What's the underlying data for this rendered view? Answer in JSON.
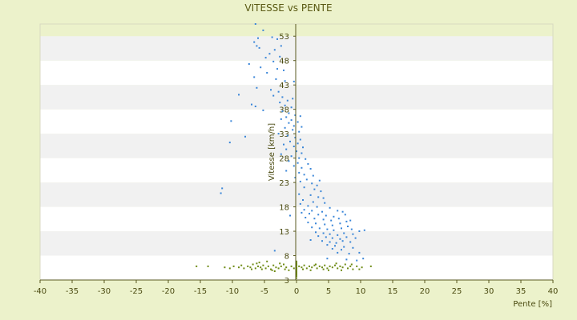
{
  "chart_data": {
    "type": "scatter",
    "title": "VITESSE vs PENTE",
    "xlabel": "Pente [%]",
    "ylabel": "Vitesse [km/h]",
    "xlim": [
      -40,
      40
    ],
    "ylim": [
      3,
      55.5
    ],
    "x_ticks": [
      -40,
      -35,
      -30,
      -25,
      -20,
      -15,
      -10,
      -5,
      0,
      5,
      10,
      15,
      20,
      25,
      30,
      35,
      40
    ],
    "y_ticks": [
      3,
      8,
      13,
      18,
      23,
      28,
      33,
      38,
      43,
      48,
      53
    ],
    "grid": "horizontal bands",
    "colors": {
      "background": "#ecf2cb",
      "band_light": "#ffffff",
      "band_dark": "#f1f1f1",
      "axis": "#5a5a20",
      "series_1": "#3a86d8",
      "series_2": "#6e8a14"
    },
    "series": [
      {
        "color": "#3a86d8",
        "points": [
          [
            -6.4,
            55.5
          ],
          [
            -5.2,
            54.2
          ],
          [
            -6.0,
            52.6
          ],
          [
            -6.6,
            51.8
          ],
          [
            -6.2,
            51.0
          ],
          [
            -5.8,
            50.6
          ],
          [
            -3.8,
            52.8
          ],
          [
            -3.0,
            52.4
          ],
          [
            -2.4,
            51.0
          ],
          [
            -3.4,
            50.2
          ],
          [
            -4.2,
            49.4
          ],
          [
            -2.6,
            48.8
          ],
          [
            -4.8,
            48.6
          ],
          [
            -3.6,
            47.8
          ],
          [
            -7.4,
            47.3
          ],
          [
            -5.6,
            46.6
          ],
          [
            -3.0,
            46.3
          ],
          [
            -2.0,
            46.0
          ],
          [
            -4.6,
            45.5
          ],
          [
            -6.6,
            44.6
          ],
          [
            -3.2,
            44.2
          ],
          [
            -1.8,
            43.8
          ],
          [
            -0.4,
            43.7
          ],
          [
            -6.2,
            42.4
          ],
          [
            -4.0,
            42.0
          ],
          [
            -2.8,
            41.6
          ],
          [
            -9.0,
            41.0
          ],
          [
            -3.6,
            40.8
          ],
          [
            -2.2,
            40.5
          ],
          [
            -0.6,
            40.2
          ],
          [
            -1.4,
            39.8
          ],
          [
            -2.6,
            39.4
          ],
          [
            -7.0,
            39.0
          ],
          [
            -6.4,
            38.6
          ],
          [
            -1.8,
            38.8
          ],
          [
            -0.8,
            38.4
          ],
          [
            -5.2,
            37.8
          ],
          [
            -2.2,
            37.6
          ],
          [
            -1.2,
            37.2
          ],
          [
            -0.2,
            36.8
          ],
          [
            0.6,
            36.6
          ],
          [
            -1.6,
            36.4
          ],
          [
            -2.4,
            36.0
          ],
          [
            -0.8,
            35.8
          ],
          [
            0.2,
            35.4
          ],
          [
            -10.2,
            35.6
          ],
          [
            -1.2,
            35.2
          ],
          [
            -0.4,
            34.6
          ],
          [
            0.8,
            34.4
          ],
          [
            -1.8,
            34.2
          ],
          [
            -0.6,
            33.8
          ],
          [
            0.4,
            33.4
          ],
          [
            -2.8,
            33.0
          ],
          [
            -1.4,
            32.6
          ],
          [
            -8.0,
            32.4
          ],
          [
            -0.2,
            32.2
          ],
          [
            0.6,
            31.8
          ],
          [
            -1.0,
            31.4
          ],
          [
            -10.4,
            31.2
          ],
          [
            0.2,
            31.0
          ],
          [
            -2.0,
            30.8
          ],
          [
            -0.4,
            30.4
          ],
          [
            1.0,
            30.2
          ],
          [
            -1.6,
            29.8
          ],
          [
            0.0,
            29.4
          ],
          [
            0.8,
            29.0
          ],
          [
            -2.4,
            28.8
          ],
          [
            -0.8,
            28.4
          ],
          [
            0.4,
            28.0
          ],
          [
            1.4,
            27.8
          ],
          [
            -1.2,
            27.4
          ],
          [
            0.2,
            27.0
          ],
          [
            1.8,
            26.8
          ],
          [
            -0.4,
            26.4
          ],
          [
            0.8,
            26.0
          ],
          [
            2.2,
            25.8
          ],
          [
            -1.6,
            25.4
          ],
          [
            0.4,
            25.0
          ],
          [
            1.2,
            24.6
          ],
          [
            2.6,
            24.4
          ],
          [
            -0.2,
            24.0
          ],
          [
            1.6,
            23.6
          ],
          [
            3.6,
            23.4
          ],
          [
            0.6,
            23.2
          ],
          [
            2.4,
            22.8
          ],
          [
            3.2,
            22.4
          ],
          [
            -11.6,
            21.8
          ],
          [
            1.2,
            22.0
          ],
          [
            2.8,
            21.6
          ],
          [
            3.8,
            21.2
          ],
          [
            -11.8,
            20.8
          ],
          [
            0.4,
            20.6
          ],
          [
            2.2,
            20.4
          ],
          [
            3.4,
            20.0
          ],
          [
            4.2,
            19.8
          ],
          [
            1.0,
            19.4
          ],
          [
            2.6,
            19.0
          ],
          [
            4.4,
            18.8
          ],
          [
            0.6,
            18.6
          ],
          [
            1.8,
            18.2
          ],
          [
            3.2,
            18.0
          ],
          [
            5.2,
            17.8
          ],
          [
            1.2,
            17.4
          ],
          [
            2.4,
            17.2
          ],
          [
            4.0,
            17.0
          ],
          [
            6.4,
            17.2
          ],
          [
            7.2,
            17.0
          ],
          [
            0.8,
            16.8
          ],
          [
            2.0,
            16.6
          ],
          [
            3.4,
            16.4
          ],
          [
            4.6,
            16.2
          ],
          [
            5.8,
            16.0
          ],
          [
            7.6,
            16.4
          ],
          [
            -1.0,
            16.2
          ],
          [
            1.4,
            15.8
          ],
          [
            2.8,
            15.6
          ],
          [
            4.2,
            15.4
          ],
          [
            5.4,
            15.2
          ],
          [
            6.6,
            15.6
          ],
          [
            7.8,
            15.0
          ],
          [
            8.4,
            15.2
          ],
          [
            1.8,
            14.8
          ],
          [
            3.0,
            14.6
          ],
          [
            4.4,
            14.4
          ],
          [
            5.6,
            14.2
          ],
          [
            6.8,
            14.6
          ],
          [
            8.0,
            14.0
          ],
          [
            2.4,
            13.8
          ],
          [
            3.6,
            13.6
          ],
          [
            4.8,
            13.4
          ],
          [
            5.8,
            13.2
          ],
          [
            7.0,
            13.6
          ],
          [
            8.6,
            13.4
          ],
          [
            9.8,
            13.0
          ],
          [
            10.6,
            13.2
          ],
          [
            3.0,
            12.8
          ],
          [
            4.2,
            12.6
          ],
          [
            5.2,
            12.4
          ],
          [
            6.4,
            12.2
          ],
          [
            7.4,
            12.6
          ],
          [
            8.8,
            12.4
          ],
          [
            3.4,
            12.0
          ],
          [
            4.6,
            11.8
          ],
          [
            5.6,
            11.6
          ],
          [
            6.8,
            11.4
          ],
          [
            7.8,
            11.8
          ],
          [
            9.2,
            11.6
          ],
          [
            2.2,
            11.2
          ],
          [
            4.0,
            11.0
          ],
          [
            5.2,
            10.8
          ],
          [
            6.2,
            10.6
          ],
          [
            7.2,
            11.0
          ],
          [
            8.4,
            10.8
          ],
          [
            4.8,
            10.2
          ],
          [
            6.0,
            10.0
          ],
          [
            7.4,
            9.8
          ],
          [
            8.8,
            9.6
          ],
          [
            5.6,
            9.4
          ],
          [
            7.0,
            9.2
          ],
          [
            -3.4,
            9.0
          ],
          [
            6.4,
            8.6
          ],
          [
            8.2,
            8.4
          ],
          [
            9.8,
            8.6
          ],
          [
            4.8,
            7.4
          ],
          [
            7.8,
            7.2
          ],
          [
            10.4,
            7.4
          ],
          [
            9.4,
            7.0
          ]
        ]
      },
      {
        "color": "#6e8a14",
        "points": [
          [
            -15.6,
            5.8
          ],
          [
            -13.8,
            5.8
          ],
          [
            -11.2,
            5.6
          ],
          [
            -10.4,
            5.4
          ],
          [
            -9.8,
            5.8
          ],
          [
            -9.0,
            5.6
          ],
          [
            -8.6,
            6.0
          ],
          [
            -8.2,
            5.4
          ],
          [
            -7.6,
            5.8
          ],
          [
            -7.2,
            5.6
          ],
          [
            -6.8,
            6.2
          ],
          [
            -6.4,
            5.4
          ],
          [
            -6.0,
            5.8
          ],
          [
            -5.6,
            5.6
          ],
          [
            -5.2,
            6.0
          ],
          [
            -4.8,
            5.4
          ],
          [
            -4.4,
            5.8
          ],
          [
            -4.0,
            5.2
          ],
          [
            -3.6,
            6.0
          ],
          [
            -3.2,
            5.6
          ],
          [
            -2.8,
            5.4
          ],
          [
            -2.4,
            5.8
          ],
          [
            -2.0,
            6.2
          ],
          [
            -1.6,
            5.6
          ],
          [
            -1.2,
            5.0
          ],
          [
            -0.8,
            5.8
          ],
          [
            -0.4,
            5.4
          ],
          [
            -5.8,
            6.6
          ],
          [
            -4.6,
            6.8
          ],
          [
            -3.8,
            5.0
          ],
          [
            -5.4,
            5.2
          ],
          [
            -2.6,
            6.4
          ],
          [
            -1.8,
            5.2
          ],
          [
            -6.2,
            6.4
          ],
          [
            -7.0,
            5.2
          ],
          [
            -3.4,
            4.8
          ],
          [
            0.4,
            5.8
          ],
          [
            0.8,
            5.6
          ],
          [
            1.2,
            6.0
          ],
          [
            1.6,
            5.4
          ],
          [
            2.0,
            5.8
          ],
          [
            2.4,
            5.6
          ],
          [
            2.8,
            6.0
          ],
          [
            3.2,
            5.4
          ],
          [
            3.6,
            5.8
          ],
          [
            4.0,
            5.6
          ],
          [
            4.4,
            6.0
          ],
          [
            4.8,
            5.4
          ],
          [
            5.2,
            5.8
          ],
          [
            5.6,
            5.6
          ],
          [
            6.0,
            6.0
          ],
          [
            6.4,
            5.4
          ],
          [
            6.8,
            5.8
          ],
          [
            7.2,
            5.6
          ],
          [
            7.6,
            6.2
          ],
          [
            8.0,
            5.4
          ],
          [
            8.4,
            5.8
          ],
          [
            8.8,
            5.2
          ],
          [
            9.4,
            5.8
          ],
          [
            10.2,
            5.6
          ],
          [
            11.6,
            5.8
          ],
          [
            1.0,
            5.2
          ],
          [
            2.2,
            5.0
          ],
          [
            3.0,
            6.2
          ],
          [
            5.0,
            5.0
          ],
          [
            7.0,
            5.0
          ],
          [
            6.2,
            6.4
          ],
          [
            8.6,
            6.2
          ],
          [
            4.2,
            5.2
          ],
          [
            9.8,
            5.2
          ]
        ]
      },
      {
        "color": "#6e8a14",
        "points": [
          [
            0,
            6.2
          ],
          [
            0,
            5.9
          ],
          [
            0,
            5.6
          ],
          [
            0,
            5.3
          ],
          [
            0,
            5.0
          ],
          [
            0,
            4.7
          ],
          [
            0,
            4.4
          ],
          [
            0,
            4.1
          ],
          [
            0,
            3.8
          ],
          [
            0,
            3.4
          ],
          [
            0,
            6.5
          ],
          [
            0,
            6.8
          ]
        ]
      }
    ]
  }
}
